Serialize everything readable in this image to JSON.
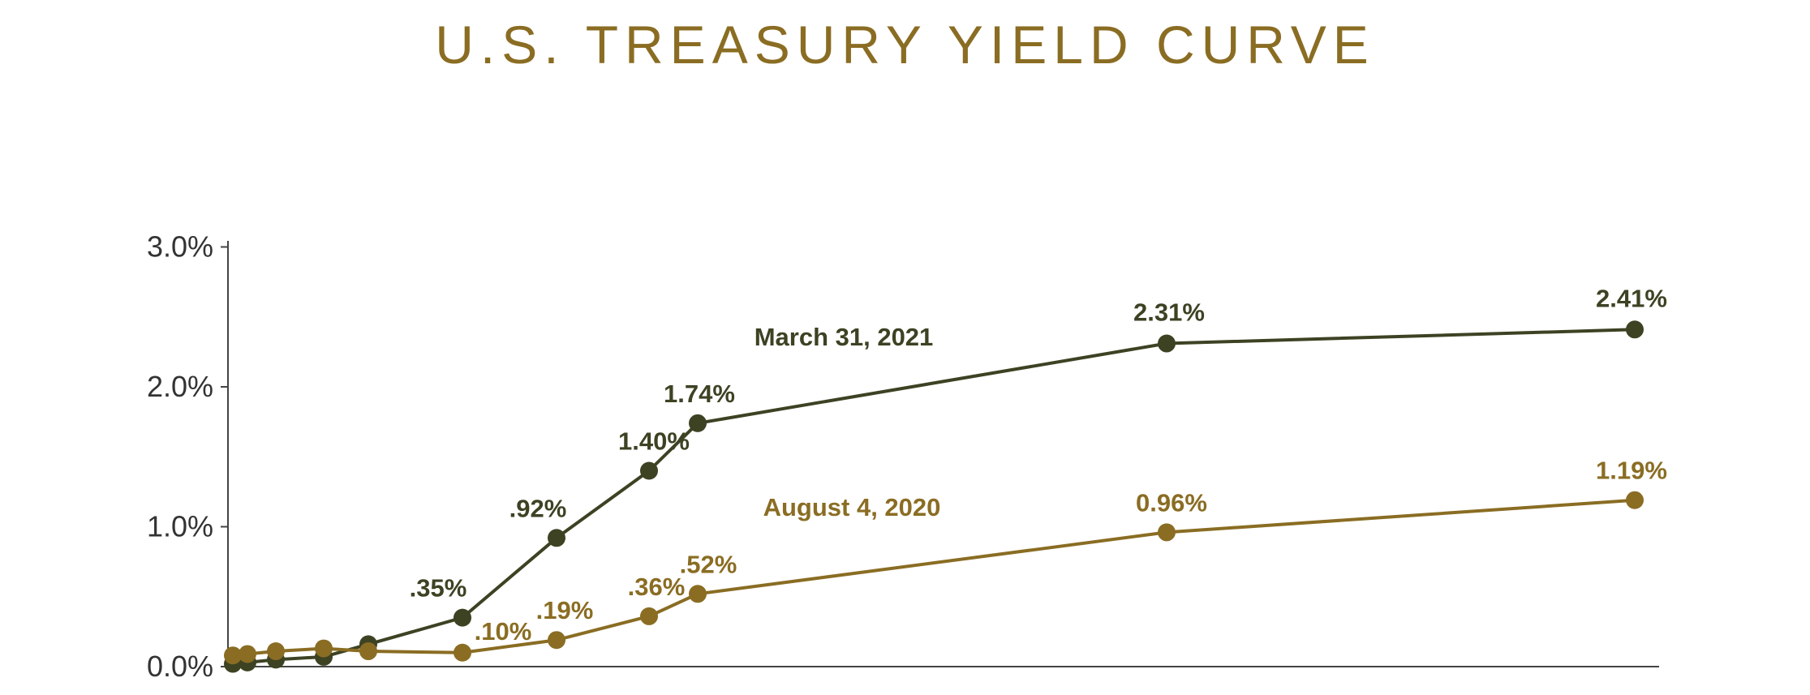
{
  "colors": {
    "title": "#8a6d23",
    "axis": "#444444",
    "march_series": "#3d4223",
    "august_series": "#8a6d23"
  },
  "chart_data": {
    "type": "line",
    "title": "U.S. TREASURY YIELD CURVE",
    "xlabel": "",
    "ylabel": "",
    "ylim": [
      0,
      3.0
    ],
    "yticks": [
      {
        "value": 0.0,
        "label": "0.0%"
      },
      {
        "value": 1.0,
        "label": "1.0%"
      },
      {
        "value": 2.0,
        "label": "2.0%"
      },
      {
        "value": 3.0,
        "label": "3.0%"
      }
    ],
    "grid": false,
    "legend": "inline series labels",
    "series": [
      {
        "name": "March 31, 2021",
        "color": "#3d4223",
        "x": [
          0.08,
          0.25,
          0.5,
          1,
          2,
          3,
          5,
          7,
          10,
          20,
          30
        ],
        "y": [
          0.02,
          0.03,
          0.05,
          0.07,
          0.16,
          0.35,
          0.92,
          1.4,
          1.74,
          2.31,
          2.41
        ],
        "labels": [
          "",
          "",
          "",
          "",
          "",
          ".35%",
          ".92%",
          "1.40%",
          "1.74%",
          "2.31%",
          "2.41%"
        ]
      },
      {
        "name": "August 4, 2020",
        "color": "#8a6d23",
        "x": [
          0.08,
          0.25,
          0.5,
          1,
          2,
          3,
          5,
          7,
          10,
          20,
          30
        ],
        "y": [
          0.08,
          0.09,
          0.11,
          0.13,
          0.11,
          0.1,
          0.19,
          0.36,
          0.52,
          0.96,
          1.19
        ],
        "labels": [
          "",
          "",
          "",
          "",
          "",
          ".10%",
          ".19%",
          ".36%",
          ".52%",
          "0.96%",
          "1.19%"
        ]
      }
    ]
  }
}
